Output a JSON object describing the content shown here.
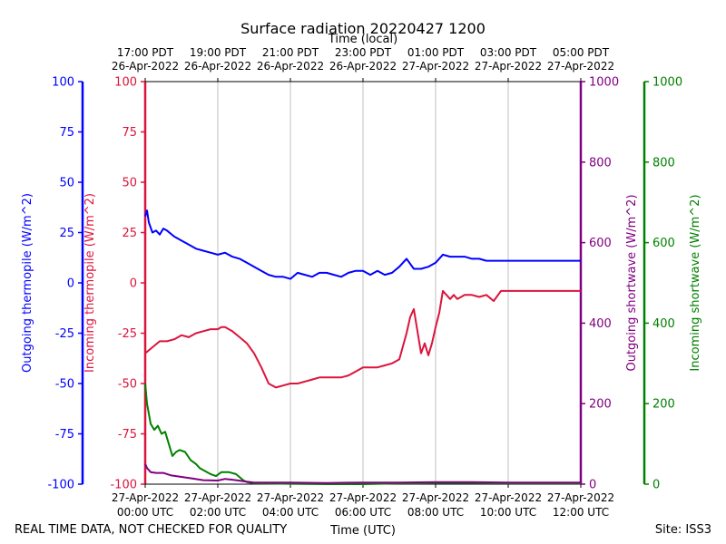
{
  "title": "Surface radiation 20220427 1200",
  "footer": {
    "left": "REAL TIME DATA, NOT CHECKED FOR QUALITY",
    "right": "Site: ISS3"
  },
  "chart_data": {
    "type": "line",
    "title": "Surface radiation 20220427 1200",
    "xlabel_bottom": "Time (UTC)",
    "xlabel_top": "Time (local)",
    "xlim_hours_utc": [
      0,
      12
    ],
    "grid": "vertical",
    "bottom_ticks": [
      {
        "h": 0,
        "date": "27-Apr-2022",
        "time": "00:00 UTC"
      },
      {
        "h": 2,
        "date": "27-Apr-2022",
        "time": "02:00 UTC"
      },
      {
        "h": 4,
        "date": "27-Apr-2022",
        "time": "04:00 UTC"
      },
      {
        "h": 6,
        "date": "27-Apr-2022",
        "time": "06:00 UTC"
      },
      {
        "h": 8,
        "date": "27-Apr-2022",
        "time": "08:00 UTC"
      },
      {
        "h": 10,
        "date": "27-Apr-2022",
        "time": "10:00 UTC"
      },
      {
        "h": 12,
        "date": "27-Apr-2022",
        "time": "12:00 UTC"
      }
    ],
    "top_ticks": [
      {
        "h": 0,
        "time": "17:00 PDT",
        "date": "26-Apr-2022"
      },
      {
        "h": 2,
        "time": "19:00 PDT",
        "date": "26-Apr-2022"
      },
      {
        "h": 4,
        "time": "21:00 PDT",
        "date": "26-Apr-2022"
      },
      {
        "h": 6,
        "time": "23:00 PDT",
        "date": "26-Apr-2022"
      },
      {
        "h": 8,
        "time": "01:00 PDT",
        "date": "27-Apr-2022"
      },
      {
        "h": 10,
        "time": "03:00 PDT",
        "date": "27-Apr-2022"
      },
      {
        "h": 12,
        "time": "05:00 PDT",
        "date": "27-Apr-2022"
      }
    ],
    "axes": [
      {
        "id": "outgoing_thermopile",
        "label": "Outgoing thermopile (W/m^2)",
        "color": "#0000ff",
        "side": "left-outer",
        "ylim": [
          -100,
          100
        ],
        "ticks": [
          -100,
          -75,
          -50,
          -25,
          0,
          25,
          50,
          75,
          100
        ]
      },
      {
        "id": "incoming_thermopile",
        "label": "Incoming thermopile (W/m^2)",
        "color": "#dc143c",
        "side": "left-inner",
        "ylim": [
          -100,
          100
        ],
        "ticks": [
          -100,
          -75,
          -50,
          -25,
          0,
          25,
          50,
          75,
          100
        ]
      },
      {
        "id": "outgoing_shortwave",
        "label": "Outgoing shortwave (W/m^2)",
        "color": "#800080",
        "side": "right-inner",
        "ylim": [
          0,
          1000
        ],
        "ticks": [
          0,
          200,
          400,
          600,
          800,
          1000
        ]
      },
      {
        "id": "incoming_shortwave",
        "label": "Incoming shortwave (W/m^2)",
        "color": "#008000",
        "side": "right-outer",
        "ylim": [
          0,
          1000
        ],
        "ticks": [
          0,
          200,
          400,
          600,
          800,
          1000
        ]
      }
    ],
    "series": [
      {
        "axis": "outgoing_thermopile",
        "color": "#0000ff",
        "x": [
          0,
          0.05,
          0.1,
          0.2,
          0.3,
          0.4,
          0.5,
          0.6,
          0.8,
          1.0,
          1.2,
          1.4,
          1.6,
          1.8,
          2.0,
          2.2,
          2.4,
          2.6,
          2.8,
          3.0,
          3.2,
          3.4,
          3.6,
          3.8,
          4.0,
          4.2,
          4.4,
          4.6,
          4.8,
          5.0,
          5.2,
          5.4,
          5.6,
          5.8,
          6.0,
          6.2,
          6.4,
          6.6,
          6.8,
          7.0,
          7.2,
          7.4,
          7.6,
          7.8,
          8.0,
          8.2,
          8.4,
          8.6,
          8.8,
          9.0,
          9.2,
          9.4,
          9.6,
          9.8,
          10.0,
          10.5,
          11.0,
          11.5,
          12.0
        ],
        "y": [
          33,
          36,
          30,
          25,
          26,
          24,
          27,
          26,
          23,
          21,
          19,
          17,
          16,
          15,
          14,
          15,
          13,
          12,
          10,
          8,
          6,
          4,
          3,
          3,
          2,
          5,
          4,
          3,
          5,
          5,
          4,
          3,
          5,
          6,
          6,
          4,
          6,
          4,
          5,
          8,
          12,
          7,
          7,
          8,
          10,
          14,
          13,
          13,
          13,
          12,
          12,
          11,
          11,
          11,
          11,
          11,
          11,
          11,
          11
        ]
      },
      {
        "axis": "incoming_thermopile",
        "color": "#dc143c",
        "x": [
          0,
          0.2,
          0.4,
          0.6,
          0.8,
          1.0,
          1.2,
          1.4,
          1.6,
          1.8,
          2.0,
          2.1,
          2.2,
          2.4,
          2.6,
          2.8,
          3.0,
          3.2,
          3.4,
          3.6,
          3.8,
          4.0,
          4.2,
          4.4,
          4.6,
          4.8,
          5.0,
          5.2,
          5.4,
          5.6,
          5.8,
          6.0,
          6.2,
          6.4,
          6.6,
          6.8,
          7.0,
          7.2,
          7.3,
          7.4,
          7.6,
          7.7,
          7.8,
          7.9,
          8.0,
          8.1,
          8.2,
          8.3,
          8.4,
          8.5,
          8.6,
          8.8,
          9.0,
          9.2,
          9.4,
          9.6,
          9.8,
          10.0,
          10.5,
          11.0,
          11.5,
          12.0
        ],
        "y": [
          -35,
          -32,
          -29,
          -29,
          -28,
          -26,
          -27,
          -25,
          -24,
          -23,
          -23,
          -22,
          -22,
          -24,
          -27,
          -30,
          -35,
          -42,
          -50,
          -52,
          -51,
          -50,
          -50,
          -49,
          -48,
          -47,
          -47,
          -47,
          -47,
          -46,
          -44,
          -42,
          -42,
          -42,
          -41,
          -40,
          -38,
          -25,
          -17,
          -13,
          -35,
          -30,
          -36,
          -30,
          -22,
          -15,
          -4,
          -6,
          -8,
          -6,
          -8,
          -6,
          -6,
          -7,
          -6,
          -9,
          -4,
          -4,
          -4,
          -4,
          -4,
          -4
        ]
      },
      {
        "axis": "outgoing_shortwave",
        "color": "#800080",
        "x": [
          0,
          0.05,
          0.15,
          0.3,
          0.5,
          0.7,
          1.0,
          1.3,
          1.6,
          2.0,
          2.2,
          2.5,
          2.8,
          3.0,
          4.0,
          5.0,
          6.0,
          7.0,
          8.0,
          9.0,
          10.0,
          11.0,
          12.0
        ],
        "y": [
          50,
          40,
          30,
          28,
          28,
          22,
          18,
          14,
          10,
          9,
          13,
          10,
          6,
          4,
          4,
          3,
          4,
          4,
          5,
          5,
          4,
          4,
          4
        ]
      },
      {
        "axis": "incoming_shortwave",
        "color": "#008000",
        "x": [
          0,
          0.05,
          0.15,
          0.25,
          0.35,
          0.45,
          0.55,
          0.65,
          0.75,
          0.85,
          0.95,
          1.1,
          1.25,
          1.4,
          1.5,
          1.6,
          1.8,
          1.95,
          2.1,
          2.3,
          2.5,
          2.7,
          2.8,
          3.0,
          4.0,
          5.0,
          6.0,
          7.0,
          7.5,
          8.0,
          9.0,
          10.0,
          11.0,
          12.0
        ],
        "y": [
          250,
          200,
          150,
          135,
          145,
          125,
          130,
          100,
          70,
          80,
          85,
          80,
          60,
          50,
          40,
          35,
          25,
          20,
          30,
          30,
          25,
          10,
          5,
          2,
          1,
          0,
          0,
          2,
          2,
          3,
          3,
          2,
          2,
          2
        ]
      }
    ]
  }
}
